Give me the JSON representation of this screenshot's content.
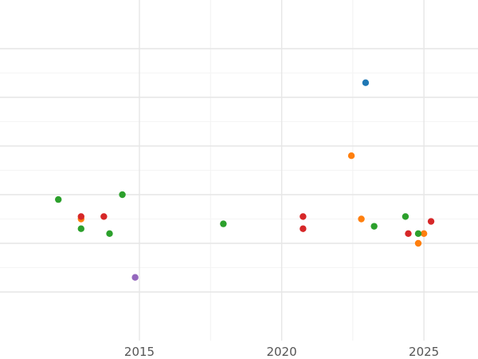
{
  "chart_data": {
    "type": "scatter",
    "title": "",
    "xlabel": "",
    "ylabel": "",
    "x_ticks": [
      2015,
      2020,
      2025
    ],
    "xlim": [
      2010.1,
      2026.9
    ],
    "ylim": [
      0,
      7
    ],
    "y_gridlines": [
      1,
      2,
      3,
      4,
      5,
      6
    ],
    "grid": true,
    "legend": "none",
    "colors": {
      "blue": "#1f77b4",
      "orange": "#ff7f0e",
      "green": "#2ca02c",
      "red": "#d62728",
      "purple": "#9467bd"
    },
    "points": [
      {
        "x": 2022.95,
        "y": 5.3,
        "color": "blue"
      },
      {
        "x": 2022.45,
        "y": 3.8,
        "color": "orange"
      },
      {
        "x": 2012.95,
        "y": 2.5,
        "color": "orange"
      },
      {
        "x": 2022.8,
        "y": 2.5,
        "color": "orange"
      },
      {
        "x": 2025.0,
        "y": 2.2,
        "color": "orange"
      },
      {
        "x": 2024.8,
        "y": 2.0,
        "color": "orange"
      },
      {
        "x": 2012.15,
        "y": 2.9,
        "color": "green"
      },
      {
        "x": 2014.4,
        "y": 3.0,
        "color": "green"
      },
      {
        "x": 2012.95,
        "y": 2.3,
        "color": "green"
      },
      {
        "x": 2013.95,
        "y": 2.2,
        "color": "green"
      },
      {
        "x": 2017.95,
        "y": 2.4,
        "color": "green"
      },
      {
        "x": 2023.25,
        "y": 2.35,
        "color": "green"
      },
      {
        "x": 2024.35,
        "y": 2.55,
        "color": "green"
      },
      {
        "x": 2024.8,
        "y": 2.2,
        "color": "green"
      },
      {
        "x": 2012.95,
        "y": 2.55,
        "color": "red"
      },
      {
        "x": 2013.75,
        "y": 2.55,
        "color": "red"
      },
      {
        "x": 2020.75,
        "y": 2.55,
        "color": "red"
      },
      {
        "x": 2020.75,
        "y": 2.3,
        "color": "red"
      },
      {
        "x": 2024.45,
        "y": 2.2,
        "color": "red"
      },
      {
        "x": 2025.25,
        "y": 2.45,
        "color": "red"
      },
      {
        "x": 2014.85,
        "y": 1.3,
        "color": "purple"
      }
    ]
  }
}
